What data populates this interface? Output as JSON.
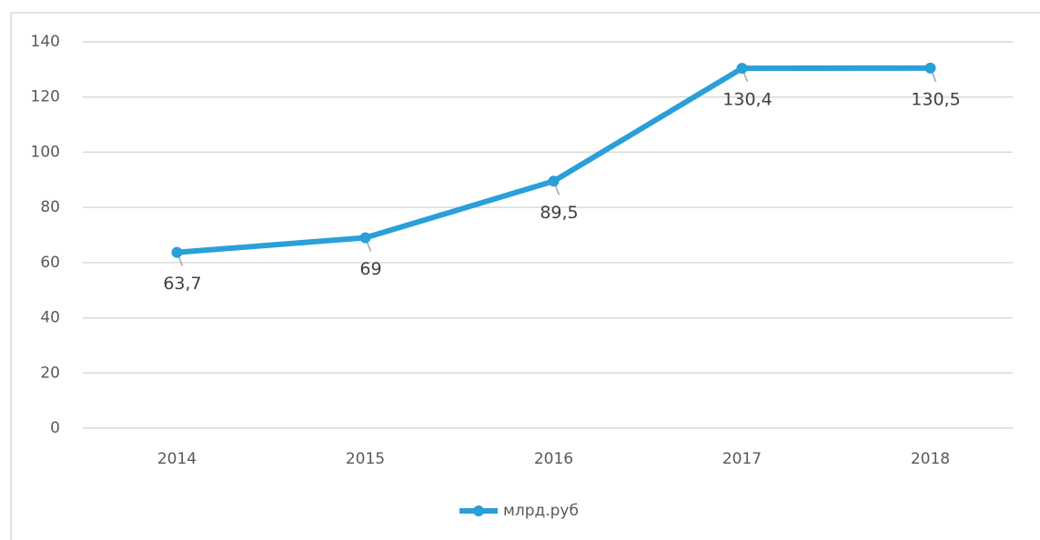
{
  "chart_data": {
    "type": "line",
    "categories": [
      "2014",
      "2015",
      "2016",
      "2017",
      "2018"
    ],
    "series": [
      {
        "name": "млрд.руб",
        "color": "#2a9fd8",
        "values": [
          63.7,
          69,
          89.5,
          130.4,
          130.5
        ],
        "value_labels": [
          "63,7",
          "69",
          "89,5",
          "130,4",
          "130,5"
        ]
      }
    ],
    "ylim": [
      0,
      140
    ],
    "yticks": [
      0,
      20,
      40,
      60,
      80,
      100,
      120,
      140
    ],
    "grid": true,
    "legend": "bottom"
  }
}
